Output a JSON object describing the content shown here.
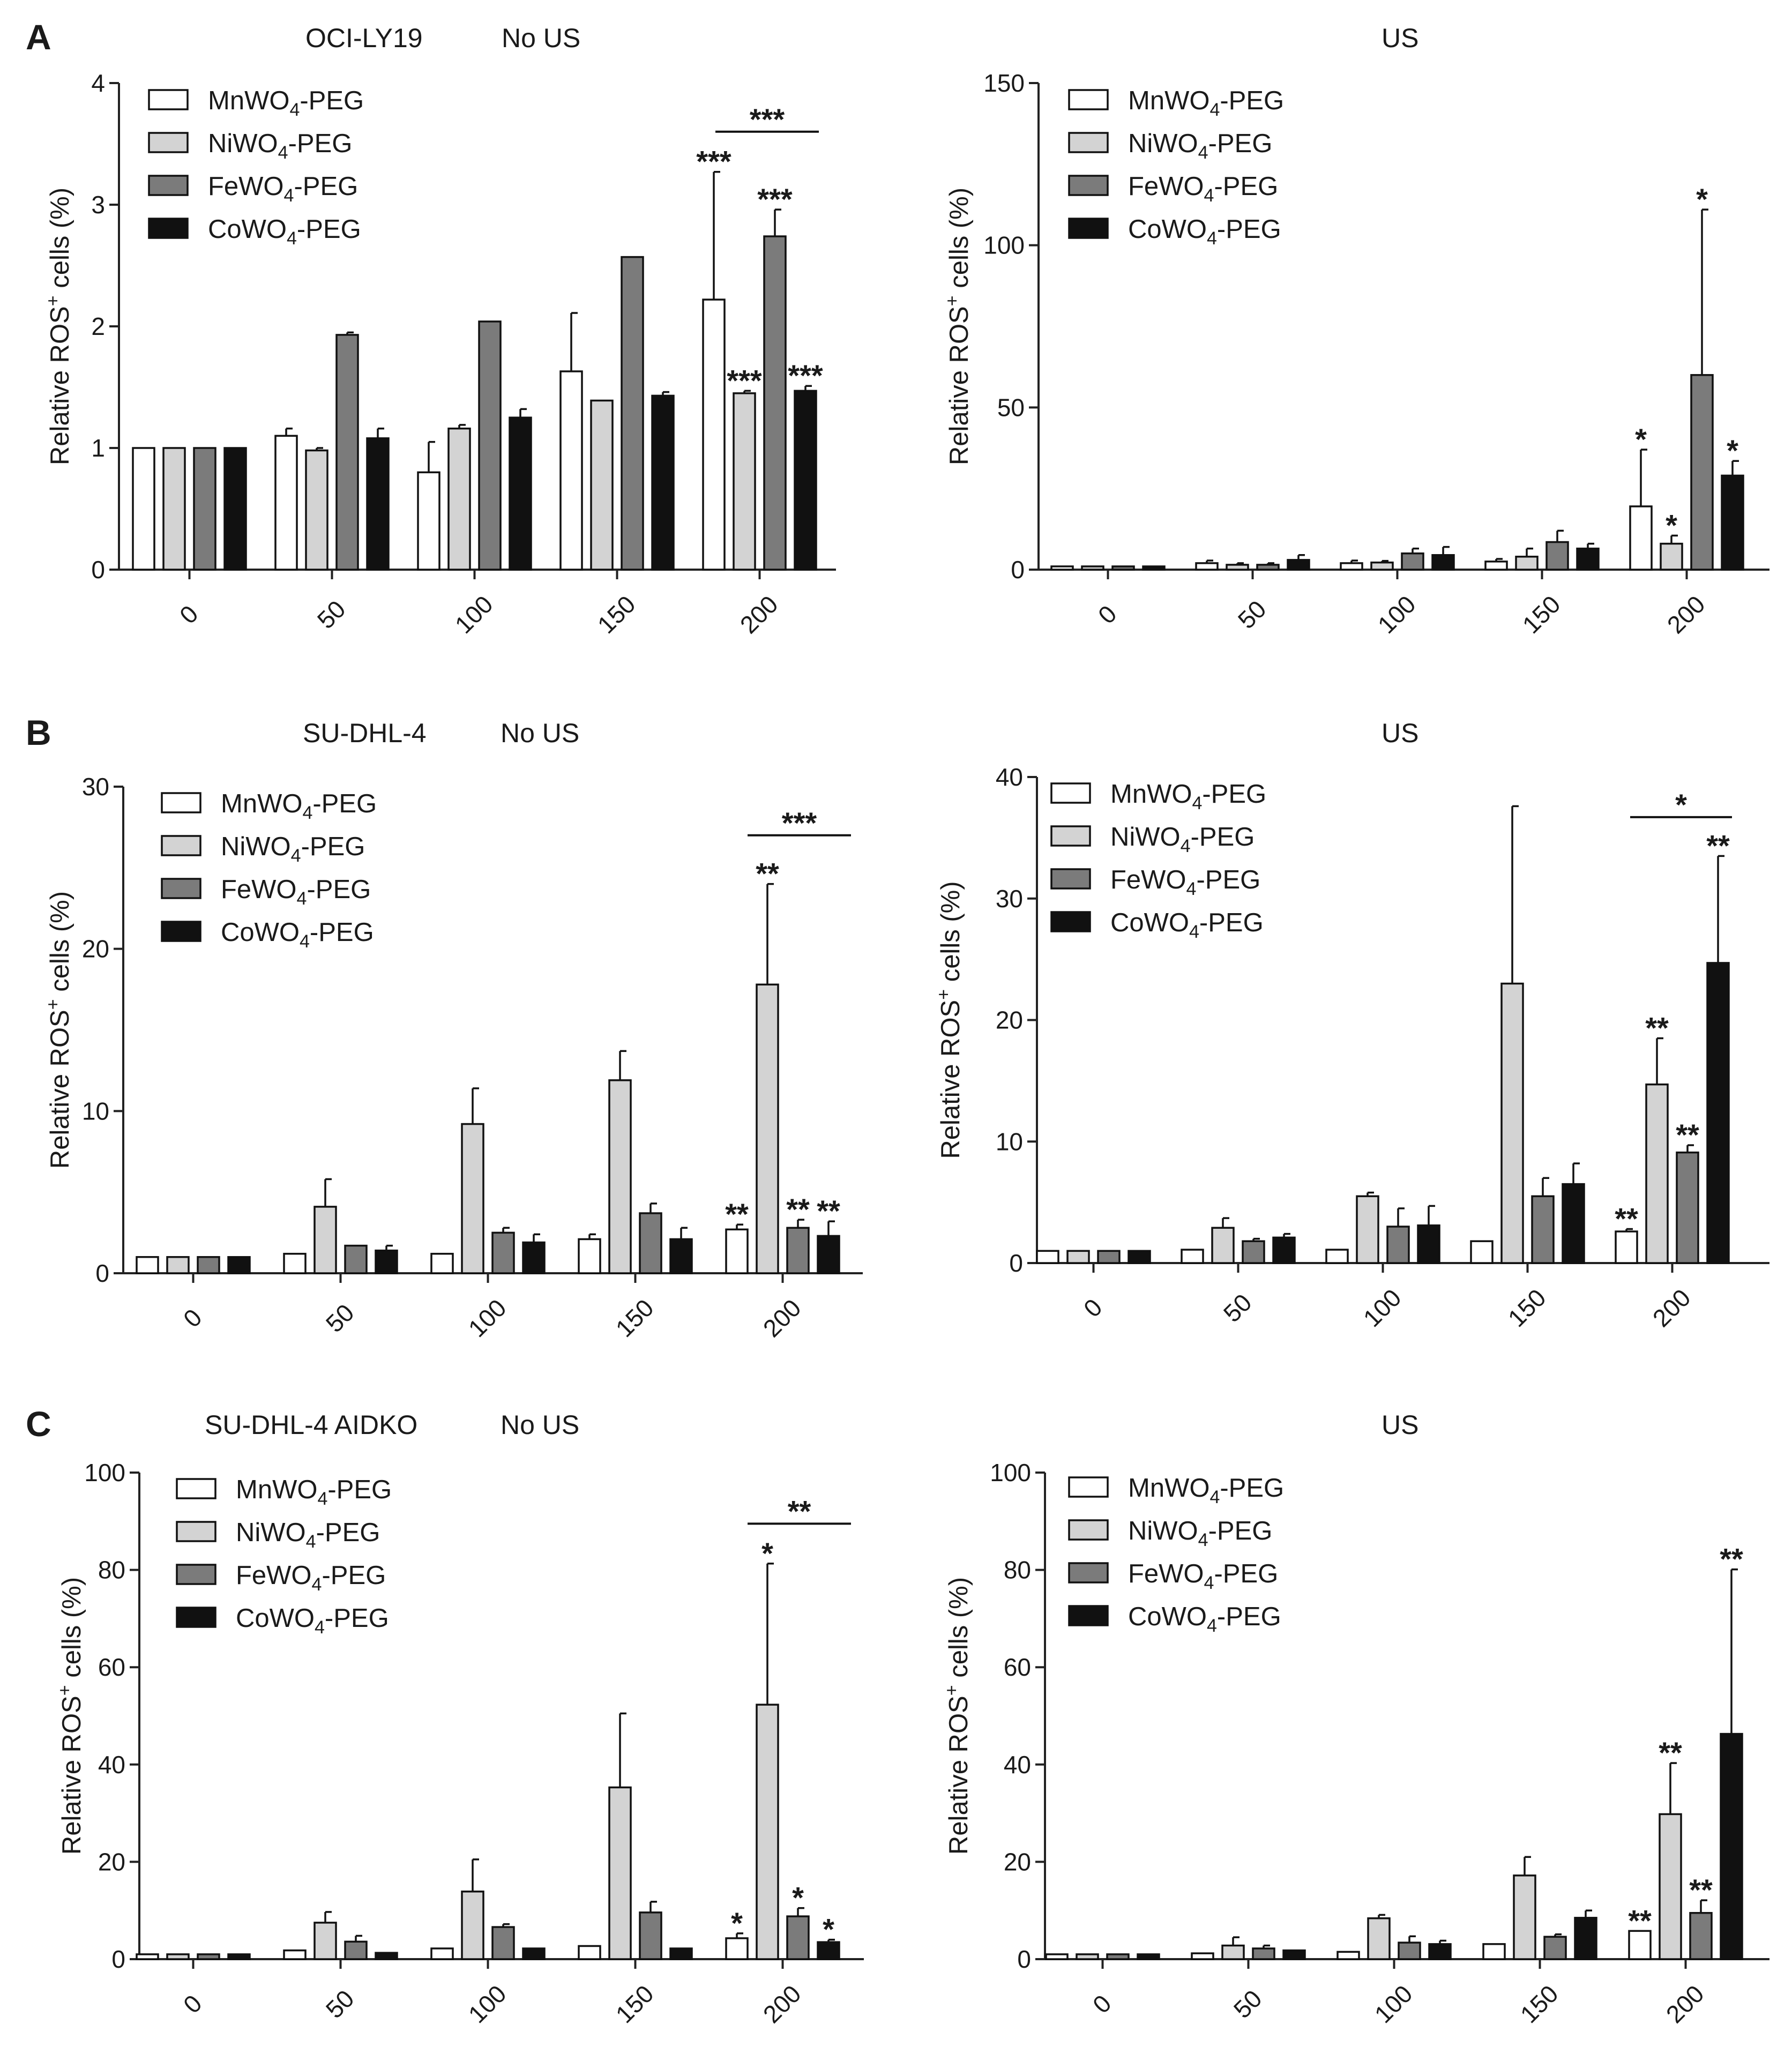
{
  "figure": {
    "panels": [
      {
        "letter": "A",
        "cell_line": "OCI-LY19"
      },
      {
        "letter": "B",
        "cell_line": "SU-DHL-4"
      },
      {
        "letter": "C",
        "cell_line": "SU-DHL-4 AIDKO"
      }
    ],
    "conditions": [
      "No US",
      "US"
    ]
  },
  "legend": {
    "entries": [
      {
        "prefix": "MnWO",
        "sub": "4",
        "suffix": "-PEG",
        "color": "#ffffff"
      },
      {
        "prefix": "NiWO",
        "sub": "4",
        "suffix": "-PEG",
        "color": "#d3d3d3"
      },
      {
        "prefix": "FeWO",
        "sub": "4",
        "suffix": "-PEG",
        "color": "#7b7b7b"
      },
      {
        "prefix": "CoWO",
        "sub": "4",
        "suffix": "-PEG",
        "color": "#111111"
      }
    ]
  },
  "ylabel": {
    "main": "Relative ROS",
    "sup": "+",
    "tail": " cells (%)"
  },
  "chart_data": [
    {
      "type": "bar",
      "panel": "A",
      "cell_line": "OCI-LY19",
      "condition": "No US",
      "categories": [
        "0",
        "50",
        "100",
        "150",
        "200"
      ],
      "ylim": [
        0,
        4
      ],
      "yticks": [
        0,
        1,
        2,
        3,
        4
      ],
      "series": [
        {
          "name": "MnWO4-PEG",
          "values": [
            1,
            1.1,
            0.8,
            1.63,
            2.22
          ],
          "errors": [
            0,
            0.06,
            0.25,
            0.48,
            1.05
          ]
        },
        {
          "name": "NiWO4-PEG",
          "values": [
            1,
            0.98,
            1.16,
            1.39,
            1.45
          ],
          "errors": [
            0,
            0.02,
            0.03,
            0,
            0.02
          ]
        },
        {
          "name": "FeWO4-PEG",
          "values": [
            1,
            1.93,
            2.04,
            2.57,
            2.74
          ],
          "errors": [
            0,
            0.02,
            0,
            0,
            0.22
          ]
        },
        {
          "name": "CoWO4-PEG",
          "values": [
            1,
            1.08,
            1.25,
            1.43,
            1.47
          ],
          "errors": [
            0,
            0.08,
            0.07,
            0.03,
            0.04
          ]
        }
      ],
      "annotations": [
        {
          "cat": 4,
          "series": 0,
          "label": "***"
        },
        {
          "cat": 4,
          "series": 1,
          "label": "***"
        },
        {
          "cat": 4,
          "series": 2,
          "label": "***"
        },
        {
          "cat": 4,
          "series": 3,
          "label": "***"
        }
      ],
      "bracket": {
        "cat": 4,
        "label": "***",
        "y": 3.6
      }
    },
    {
      "type": "bar",
      "panel": "A",
      "cell_line": "OCI-LY19",
      "condition": "US",
      "categories": [
        "0",
        "50",
        "100",
        "150",
        "200"
      ],
      "ylim": [
        0,
        150
      ],
      "yticks": [
        0,
        50,
        100,
        150
      ],
      "series": [
        {
          "name": "MnWO4-PEG",
          "values": [
            1,
            2,
            2,
            2.5,
            19.5
          ],
          "errors": [
            0,
            0.8,
            0.8,
            0.8,
            17.5
          ]
        },
        {
          "name": "NiWO4-PEG",
          "values": [
            1,
            1.5,
            2.2,
            4,
            8
          ],
          "errors": [
            0,
            0.5,
            0.5,
            2.5,
            2.5
          ]
        },
        {
          "name": "FeWO4-PEG",
          "values": [
            1,
            1.5,
            5,
            8.5,
            60
          ],
          "errors": [
            0,
            0.5,
            1.5,
            3.5,
            51
          ]
        },
        {
          "name": "CoWO4-PEG",
          "values": [
            1,
            3,
            4.5,
            6.5,
            29
          ],
          "errors": [
            0,
            1.5,
            2.5,
            1.5,
            4.5
          ]
        }
      ],
      "annotations": [
        {
          "cat": 4,
          "series": 0,
          "label": "*"
        },
        {
          "cat": 4,
          "series": 1,
          "label": "*"
        },
        {
          "cat": 4,
          "series": 2,
          "label": "*"
        },
        {
          "cat": 4,
          "series": 3,
          "label": "*"
        }
      ]
    },
    {
      "type": "bar",
      "panel": "B",
      "cell_line": "SU-DHL-4",
      "condition": "No US",
      "categories": [
        "0",
        "50",
        "100",
        "150",
        "200"
      ],
      "ylim": [
        0,
        30
      ],
      "yticks": [
        0,
        10,
        20,
        30
      ],
      "series": [
        {
          "name": "MnWO4-PEG",
          "values": [
            1,
            1.2,
            1.2,
            2.1,
            2.7
          ],
          "errors": [
            0,
            0,
            0,
            0.3,
            0.3
          ]
        },
        {
          "name": "NiWO4-PEG",
          "values": [
            1,
            4.1,
            9.2,
            11.9,
            17.8
          ],
          "errors": [
            0,
            1.7,
            2.2,
            1.8,
            6.2
          ]
        },
        {
          "name": "FeWO4-PEG",
          "values": [
            1,
            1.7,
            2.5,
            3.7,
            2.8
          ],
          "errors": [
            0,
            0,
            0.3,
            0.6,
            0.5
          ]
        },
        {
          "name": "CoWO4-PEG",
          "values": [
            1,
            1.4,
            1.9,
            2.1,
            2.3
          ],
          "errors": [
            0,
            0.3,
            0.5,
            0.7,
            0.9
          ]
        }
      ],
      "annotations": [
        {
          "cat": 4,
          "series": 0,
          "label": "**"
        },
        {
          "cat": 4,
          "series": 1,
          "label": "**"
        },
        {
          "cat": 4,
          "series": 2,
          "label": "**"
        },
        {
          "cat": 4,
          "series": 3,
          "label": "**"
        }
      ],
      "bracket": {
        "cat": 4,
        "label": "***",
        "y": 27
      }
    },
    {
      "type": "bar",
      "panel": "B",
      "cell_line": "SU-DHL-4",
      "condition": "US",
      "categories": [
        "0",
        "50",
        "100",
        "150",
        "200"
      ],
      "ylim": [
        0,
        40
      ],
      "yticks": [
        0,
        10,
        20,
        30,
        40
      ],
      "series": [
        {
          "name": "MnWO4-PEG",
          "values": [
            1,
            1.1,
            1.1,
            1.8,
            2.6
          ],
          "errors": [
            0,
            0,
            0,
            0,
            0.2
          ]
        },
        {
          "name": "NiWO4-PEG",
          "values": [
            1,
            2.9,
            5.5,
            23,
            14.7
          ],
          "errors": [
            0,
            0.8,
            0.3,
            14.6,
            3.8
          ]
        },
        {
          "name": "FeWO4-PEG",
          "values": [
            1,
            1.8,
            3,
            5.5,
            9.1
          ],
          "errors": [
            0,
            0.2,
            1.5,
            1.5,
            0.6
          ]
        },
        {
          "name": "CoWO4-PEG",
          "values": [
            1,
            2.1,
            3.1,
            6.5,
            24.7
          ],
          "errors": [
            0,
            0.3,
            1.6,
            1.7,
            8.8
          ]
        }
      ],
      "annotations": [
        {
          "cat": 4,
          "series": 0,
          "label": "**"
        },
        {
          "cat": 4,
          "series": 1,
          "label": "**"
        },
        {
          "cat": 4,
          "series": 2,
          "label": "**"
        },
        {
          "cat": 4,
          "series": 3,
          "label": "**"
        }
      ],
      "bracket": {
        "cat": 4,
        "label": "*",
        "y": 36.7
      }
    },
    {
      "type": "bar",
      "panel": "C",
      "cell_line": "SU-DHL-4 AIDKO",
      "condition": "No US",
      "categories": [
        "0",
        "50",
        "100",
        "150",
        "200"
      ],
      "ylim": [
        0,
        100
      ],
      "yticks": [
        0,
        20,
        40,
        60,
        80,
        100
      ],
      "series": [
        {
          "name": "MnWO4-PEG",
          "values": [
            1,
            1.8,
            2.2,
            2.7,
            4.3
          ],
          "errors": [
            0,
            0,
            0,
            0,
            1
          ]
        },
        {
          "name": "NiWO4-PEG",
          "values": [
            1,
            7.5,
            13.9,
            35.3,
            52.3
          ],
          "errors": [
            0,
            2.2,
            6.6,
            15.2,
            29
          ]
        },
        {
          "name": "FeWO4-PEG",
          "values": [
            1,
            3.6,
            6.6,
            9.6,
            8.8
          ],
          "errors": [
            0,
            1.2,
            0.6,
            2.2,
            1.7
          ]
        },
        {
          "name": "CoWO4-PEG",
          "values": [
            1,
            1.3,
            2.2,
            2.2,
            3.5
          ],
          "errors": [
            0,
            0,
            0,
            0,
            0.5
          ]
        }
      ],
      "annotations": [
        {
          "cat": 4,
          "series": 0,
          "label": "*"
        },
        {
          "cat": 4,
          "series": 1,
          "label": "*"
        },
        {
          "cat": 4,
          "series": 2,
          "label": "*"
        },
        {
          "cat": 4,
          "series": 3,
          "label": "*"
        }
      ],
      "bracket": {
        "cat": 4,
        "label": "**",
        "y": 89.5
      }
    },
    {
      "type": "bar",
      "panel": "C",
      "cell_line": "SU-DHL-4 AIDKO",
      "condition": "US",
      "categories": [
        "0",
        "50",
        "100",
        "150",
        "200"
      ],
      "ylim": [
        0,
        100
      ],
      "yticks": [
        0,
        20,
        40,
        60,
        80,
        100
      ],
      "series": [
        {
          "name": "MnWO4-PEG",
          "values": [
            1,
            1.2,
            1.5,
            3.1,
            5.8
          ],
          "errors": [
            0,
            0,
            0,
            0,
            0
          ]
        },
        {
          "name": "NiWO4-PEG",
          "values": [
            1,
            2.8,
            8.4,
            17.2,
            29.8
          ],
          "errors": [
            0,
            1.7,
            0.7,
            3.8,
            10.5
          ]
        },
        {
          "name": "FeWO4-PEG",
          "values": [
            1,
            2.2,
            3.4,
            4.6,
            9.5
          ],
          "errors": [
            0,
            0.6,
            1.3,
            0.5,
            2.6
          ]
        },
        {
          "name": "CoWO4-PEG",
          "values": [
            1,
            1.8,
            3.1,
            8.5,
            46.3
          ],
          "errors": [
            0,
            0,
            0.7,
            1.5,
            33.8
          ]
        }
      ],
      "annotations": [
        {
          "cat": 4,
          "series": 0,
          "label": "**"
        },
        {
          "cat": 4,
          "series": 1,
          "label": "**"
        },
        {
          "cat": 4,
          "series": 2,
          "label": "**"
        },
        {
          "cat": 4,
          "series": 3,
          "label": "**"
        }
      ]
    }
  ]
}
